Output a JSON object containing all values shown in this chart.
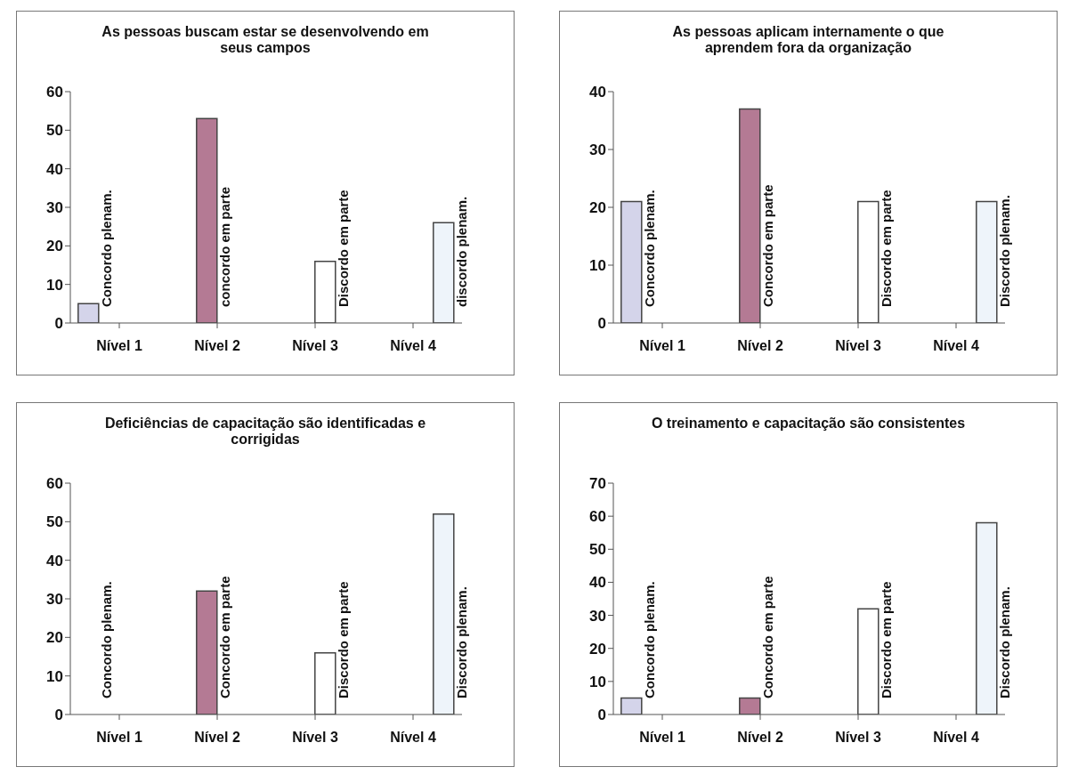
{
  "chart_data": [
    {
      "type": "bar",
      "title": "As pessoas buscam estar se desenvolvendo em seus campos",
      "categories": [
        "Nível 1",
        "Nível 2",
        "Nível 3",
        "Nível 4"
      ],
      "ylim": [
        0,
        60
      ],
      "yticks": [
        0,
        10,
        20,
        30,
        40,
        50,
        60
      ],
      "legend": false,
      "grid": false,
      "series": [
        {
          "name": "Concordo plenam.",
          "color": "#d4d4ea",
          "values": [
            5,
            null,
            null,
            null
          ]
        },
        {
          "name": "concordo em parte",
          "color": "#b47a94",
          "values": [
            null,
            53,
            null,
            null
          ]
        },
        {
          "name": "Discordo em parte",
          "color": "#ffffff",
          "values": [
            null,
            null,
            16,
            null
          ]
        },
        {
          "name": "discordo plenam.",
          "color": "#eef4fa",
          "values": [
            null,
            null,
            null,
            26
          ]
        }
      ]
    },
    {
      "type": "bar",
      "title": "As pessoas aplicam internamente o que aprendem fora da organização",
      "categories": [
        "Nível 1",
        "Nível 2",
        "Nível 3",
        "Nível 4"
      ],
      "ylim": [
        0,
        40
      ],
      "yticks": [
        0,
        10,
        20,
        30,
        40
      ],
      "legend": false,
      "grid": false,
      "series": [
        {
          "name": "Concordo plenam.",
          "color": "#d4d4ea",
          "values": [
            21,
            null,
            null,
            null
          ]
        },
        {
          "name": "Concordo em parte",
          "color": "#b47a94",
          "values": [
            null,
            37,
            null,
            null
          ]
        },
        {
          "name": "Discordo em parte",
          "color": "#ffffff",
          "values": [
            null,
            null,
            21,
            null
          ]
        },
        {
          "name": "Discordo plenam.",
          "color": "#eef4fa",
          "values": [
            null,
            null,
            null,
            21
          ]
        }
      ]
    },
    {
      "type": "bar",
      "title": "Deficiências de capacitação são identificadas e corrigidas",
      "categories": [
        "Nível 1",
        "Nível 2",
        "Nível 3",
        "Nível 4"
      ],
      "ylim": [
        0,
        60
      ],
      "yticks": [
        0,
        10,
        20,
        30,
        40,
        50,
        60
      ],
      "legend": false,
      "grid": false,
      "series": [
        {
          "name": "Concordo plenam.",
          "values": [
            0,
            null,
            null,
            null
          ]
        },
        {
          "name": "Concordo em parte",
          "color": "#b47a94",
          "values": [
            null,
            32,
            null,
            null
          ]
        },
        {
          "name": "Discordo em parte",
          "color": "#ffffff",
          "values": [
            null,
            null,
            16,
            null
          ]
        },
        {
          "name": "Discordo plenam.",
          "color": "#eef4fa",
          "values": [
            null,
            null,
            null,
            52
          ]
        }
      ]
    },
    {
      "type": "bar",
      "title": "O treinamento e capacitação são consistentes",
      "categories": [
        "Nível 1",
        "Nível 2",
        "Nível 3",
        "Nível 4"
      ],
      "ylim": [
        0,
        70
      ],
      "yticks": [
        0,
        10,
        20,
        30,
        40,
        50,
        60,
        70
      ],
      "legend": false,
      "grid": false,
      "series": [
        {
          "name": "Concordo plenam.",
          "color": "#d4d4ea",
          "values": [
            5,
            null,
            null,
            null
          ]
        },
        {
          "name": "Concordo em parte",
          "color": "#b47a94",
          "values": [
            null,
            5,
            null,
            null
          ]
        },
        {
          "name": "Discordo em parte",
          "color": "#ffffff",
          "values": [
            null,
            null,
            32,
            null
          ]
        },
        {
          "name": "Discordo plenam.",
          "color": "#eef4fa",
          "values": [
            null,
            null,
            null,
            58
          ]
        }
      ]
    }
  ]
}
